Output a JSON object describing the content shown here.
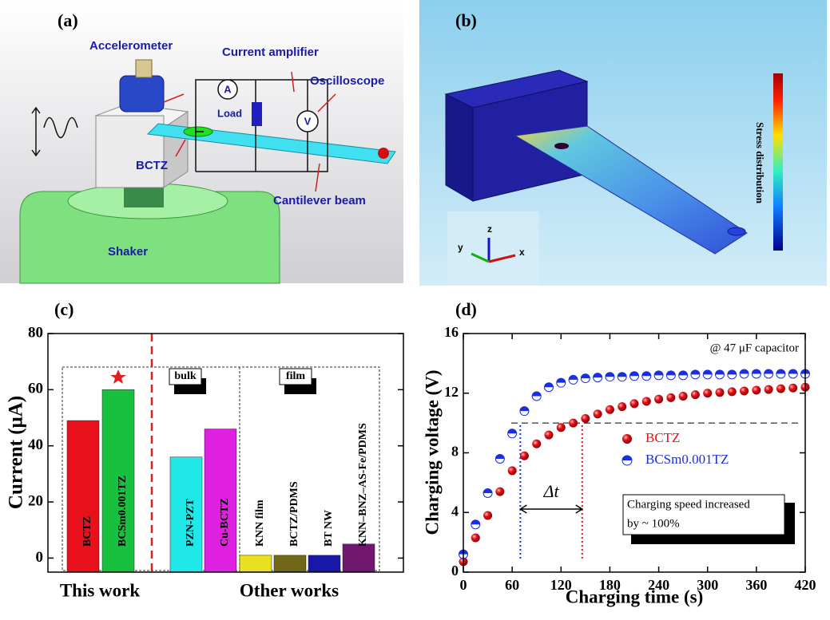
{
  "panel_a": {
    "label": "(a)",
    "accelerometer": "Accelerometer",
    "amplifier": "Current amplifier",
    "oscilloscope": "Oscilloscope",
    "load": "Load",
    "ammeter": "A",
    "voltmeter": "V",
    "sample": "BCTZ",
    "beam": "Cantilever beam",
    "shaker": "Shaker"
  },
  "panel_b": {
    "label": "(b)",
    "colorbar_label": "Stress distribution",
    "axis_z": "z",
    "axis_y": "y",
    "axis_x": "x"
  },
  "chart_data": [
    {
      "type": "bar",
      "label": "(c)",
      "ylabel": "Current (μA)",
      "categories": [
        "BCTZ",
        "BCSm0.001TZ",
        "PZN-PZT",
        "Cu-BCTZ",
        "KNN film",
        "BCTZ/PDMS",
        "BT NW",
        "KNN–BNZ–AS-Fe/PDMS"
      ],
      "values": [
        49,
        60,
        36,
        46,
        1,
        1,
        1,
        5
      ],
      "colors": [
        "#e8101a",
        "#18c040",
        "#20e8e8",
        "#e020e0",
        "#e8e020",
        "#706818",
        "#1818a8",
        "#701870"
      ],
      "ylim": [
        -5,
        80
      ],
      "yticks": [
        0,
        20,
        40,
        60,
        80
      ],
      "group_labels": [
        "This work",
        "Other works"
      ],
      "box_labels": [
        "bulk",
        "film"
      ]
    },
    {
      "type": "scatter",
      "label": "(d)",
      "xlabel": "Charging time (s)",
      "ylabel": "Charging voltage (V)",
      "x": [
        0,
        15,
        30,
        45,
        60,
        75,
        90,
        105,
        120,
        135,
        150,
        165,
        180,
        195,
        210,
        225,
        240,
        255,
        270,
        285,
        300,
        315,
        330,
        345,
        360,
        375,
        390,
        405,
        420
      ],
      "series": [
        {
          "name": "BCTZ",
          "color": "#e8101a",
          "values": [
            0.7,
            2.3,
            3.8,
            5.4,
            6.8,
            7.8,
            8.6,
            9.2,
            9.7,
            10.0,
            10.3,
            10.6,
            10.9,
            11.1,
            11.3,
            11.45,
            11.6,
            11.7,
            11.8,
            11.9,
            12.0,
            12.05,
            12.1,
            12.15,
            12.2,
            12.25,
            12.3,
            12.35,
            12.4
          ]
        },
        {
          "name": "BCSm0.001TZ",
          "color": "#1a2ee0",
          "values": [
            1.2,
            3.2,
            5.3,
            7.6,
            9.3,
            10.8,
            11.8,
            12.4,
            12.7,
            12.9,
            13.0,
            13.05,
            13.1,
            13.1,
            13.15,
            13.15,
            13.2,
            13.2,
            13.2,
            13.25,
            13.25,
            13.25,
            13.25,
            13.3,
            13.3,
            13.3,
            13.3,
            13.3,
            13.3
          ]
        }
      ],
      "xlim": [
        0,
        420
      ],
      "xticks": [
        0,
        60,
        120,
        180,
        240,
        300,
        360,
        420
      ],
      "ylim": [
        0,
        16
      ],
      "yticks": [
        0,
        4,
        8,
        12,
        16
      ],
      "annotation": "@ 47 μF capacitor",
      "hline": 10,
      "vlines": [
        70,
        146
      ],
      "delta_label": "Δt",
      "note": [
        "Charging speed increased",
        "by ~ 100%"
      ]
    }
  ]
}
